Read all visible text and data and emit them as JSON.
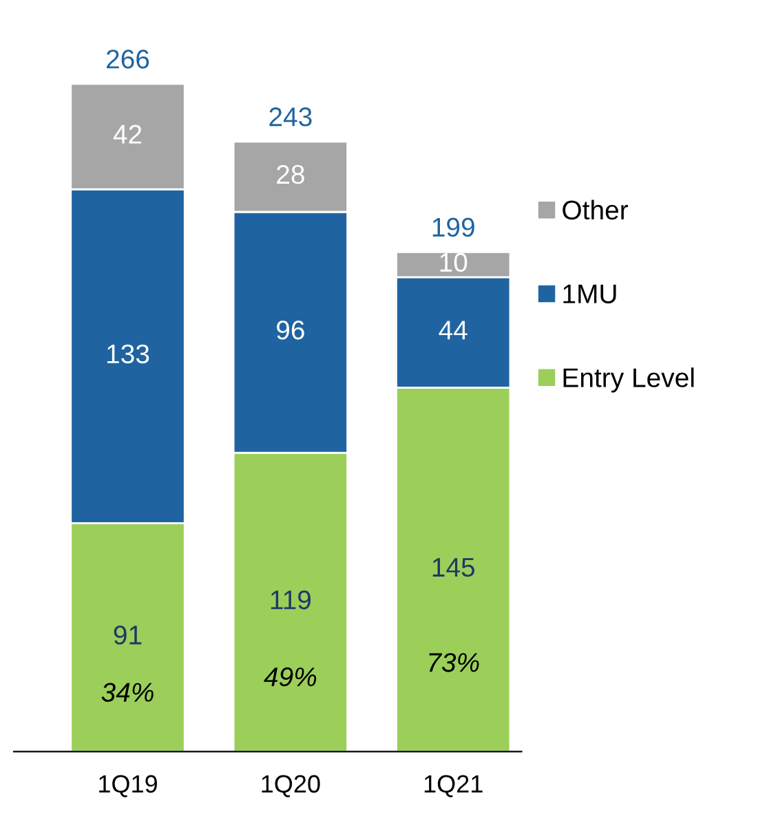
{
  "chart_data": {
    "type": "bar",
    "stacked": true,
    "categories": [
      "1Q19",
      "1Q20",
      "1Q21"
    ],
    "series": [
      {
        "name": "Entry Level",
        "color": "#9bcf5a",
        "values": [
          91,
          119,
          145
        ]
      },
      {
        "name": "1MU",
        "color": "#1f64a0",
        "values": [
          133,
          96,
          44
        ]
      },
      {
        "name": "Other",
        "color": "#a6a6a6",
        "values": [
          42,
          28,
          10
        ]
      }
    ],
    "data_labels": true,
    "totals": [
      "266",
      "243",
      "199"
    ],
    "annotations": [
      "34%",
      "49%",
      "73%"
    ],
    "legend": "right"
  }
}
